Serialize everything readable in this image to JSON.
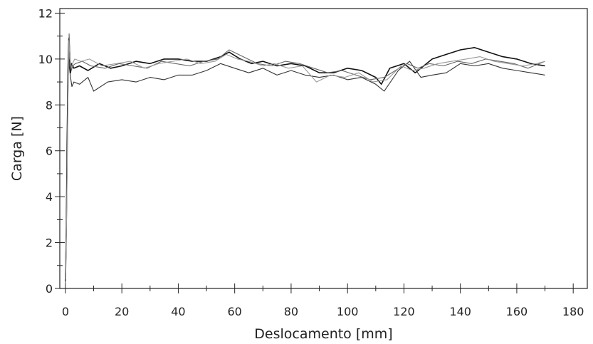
{
  "chart_data": {
    "type": "line",
    "title": "",
    "xlabel": "Deslocamento [mm]",
    "ylabel": "Carga [N]",
    "xlim": [
      -2,
      185
    ],
    "ylim": [
      0,
      12.2
    ],
    "xticks": [
      0,
      20,
      40,
      60,
      80,
      100,
      120,
      140,
      160,
      180
    ],
    "xtick_labels": [
      "0",
      "20",
      "40",
      "60",
      "80",
      "100",
      "120",
      "140",
      "160",
      "180"
    ],
    "yticks": [
      0,
      2,
      4,
      6,
      8,
      10,
      12
    ],
    "ytick_labels": [
      "0",
      "2",
      "4",
      "6",
      "8",
      "10",
      "12"
    ],
    "grid": false,
    "legend": "none",
    "series": [
      {
        "color": "#111111",
        "x": [
          0,
          0.3,
          0.6,
          0.9,
          1.2,
          1.5,
          1.8,
          2.2,
          3,
          5,
          8,
          12,
          16,
          20,
          25,
          30,
          35,
          40,
          45,
          50,
          55,
          58,
          62,
          66,
          70,
          75,
          80,
          85,
          90,
          95,
          100,
          105,
          110,
          112,
          115,
          120,
          124,
          130,
          135,
          140,
          145,
          150,
          155,
          160,
          165,
          170
        ],
        "y": [
          0.3,
          2.5,
          6.5,
          9.5,
          10.9,
          10.2,
          9.4,
          9.8,
          9.6,
          9.7,
          9.5,
          9.8,
          9.6,
          9.7,
          9.9,
          9.8,
          10.0,
          10.0,
          9.9,
          9.9,
          10.1,
          10.3,
          10.0,
          9.8,
          9.9,
          9.7,
          9.8,
          9.7,
          9.4,
          9.4,
          9.6,
          9.5,
          9.2,
          8.9,
          9.6,
          9.8,
          9.4,
          10.0,
          10.2,
          10.4,
          10.5,
          10.3,
          10.1,
          10.0,
          9.8,
          9.7
        ]
      },
      {
        "color": "#333333",
        "x": [
          0,
          0.4,
          0.8,
          1.1,
          1.4,
          1.8,
          2.3,
          3,
          5,
          8,
          10,
          15,
          20,
          25,
          30,
          35,
          40,
          45,
          50,
          55,
          60,
          65,
          70,
          75,
          80,
          85,
          90,
          95,
          100,
          105,
          110,
          113,
          118,
          122,
          126,
          130,
          135,
          140,
          145,
          150,
          155,
          160,
          165,
          170
        ],
        "y": [
          0.5,
          3.5,
          7.8,
          10.3,
          9.6,
          9.2,
          8.8,
          9.0,
          8.9,
          9.2,
          8.6,
          9.0,
          9.1,
          9.0,
          9.2,
          9.1,
          9.3,
          9.3,
          9.5,
          9.8,
          9.6,
          9.4,
          9.6,
          9.3,
          9.5,
          9.3,
          9.2,
          9.3,
          9.1,
          9.2,
          8.9,
          8.6,
          9.5,
          9.9,
          9.2,
          9.3,
          9.4,
          9.8,
          9.7,
          9.8,
          9.6,
          9.5,
          9.4,
          9.3
        ]
      },
      {
        "color": "#666666",
        "x": [
          0,
          0.5,
          0.9,
          1.3,
          1.7,
          2.1,
          2.6,
          3.5,
          6,
          9,
          14,
          19,
          24,
          29,
          34,
          39,
          44,
          49,
          54,
          58,
          63,
          68,
          73,
          78,
          83,
          88,
          93,
          98,
          103,
          108,
          113,
          117,
          121,
          125,
          129,
          134,
          139,
          144,
          149,
          154,
          159,
          164,
          170
        ],
        "y": [
          0.2,
          4.0,
          8.5,
          11.1,
          9.9,
          9.5,
          9.7,
          9.8,
          9.9,
          9.7,
          9.6,
          9.8,
          9.7,
          9.6,
          9.9,
          9.8,
          9.7,
          9.9,
          10.0,
          10.4,
          10.1,
          9.8,
          9.7,
          9.9,
          9.8,
          9.6,
          9.4,
          9.5,
          9.3,
          9.1,
          9.2,
          9.5,
          9.8,
          9.6,
          9.8,
          9.7,
          9.9,
          9.8,
          10.0,
          9.9,
          9.8,
          9.6,
          9.9
        ]
      },
      {
        "color": "#9a9a9a",
        "x": [
          0,
          0.4,
          0.8,
          1.2,
          1.6,
          2.0,
          2.5,
          3.3,
          5.5,
          8.5,
          13,
          18,
          23,
          28,
          33,
          38,
          43,
          48,
          53,
          57,
          61,
          65,
          70,
          74,
          79,
          84,
          89,
          94,
          99,
          104,
          109,
          114,
          119,
          123,
          127,
          132,
          137,
          142,
          147,
          152,
          157,
          162,
          167,
          170
        ],
        "y": [
          0.4,
          3.0,
          7.5,
          10.8,
          10.0,
          9.6,
          9.8,
          10.0,
          9.9,
          10.0,
          9.7,
          9.8,
          9.9,
          9.6,
          9.8,
          9.9,
          10.0,
          9.8,
          9.9,
          10.2,
          10.0,
          9.9,
          9.7,
          9.8,
          9.6,
          9.7,
          9.0,
          9.3,
          9.2,
          9.4,
          9.0,
          9.1,
          9.7,
          9.5,
          9.6,
          9.8,
          9.9,
          10.0,
          10.1,
          9.9,
          9.8,
          9.7,
          9.8,
          9.9
        ]
      }
    ]
  }
}
